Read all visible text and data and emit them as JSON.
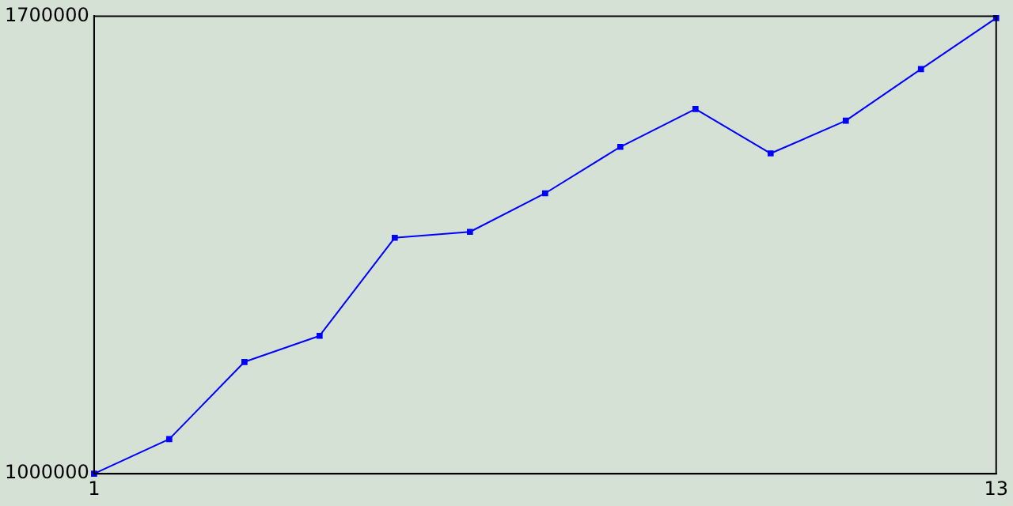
{
  "chart_data": {
    "type": "line",
    "x": [
      1,
      2,
      3,
      4,
      5,
      6,
      7,
      8,
      9,
      10,
      11,
      12,
      13
    ],
    "series": [
      {
        "color": "#0000ff",
        "values": [
          1000000,
          1053000,
          1171000,
          1211000,
          1361000,
          1370000,
          1429000,
          1500000,
          1558000,
          1490000,
          1540000,
          1619000,
          1697000
        ]
      }
    ],
    "xlim": [
      1,
      13
    ],
    "xticks": [
      1,
      13
    ],
    "ylim": [
      1000000,
      1700000
    ],
    "yticks": [
      1000000,
      1700000
    ],
    "grid": false,
    "legend": false,
    "marker": "square",
    "line_style": "solid"
  }
}
